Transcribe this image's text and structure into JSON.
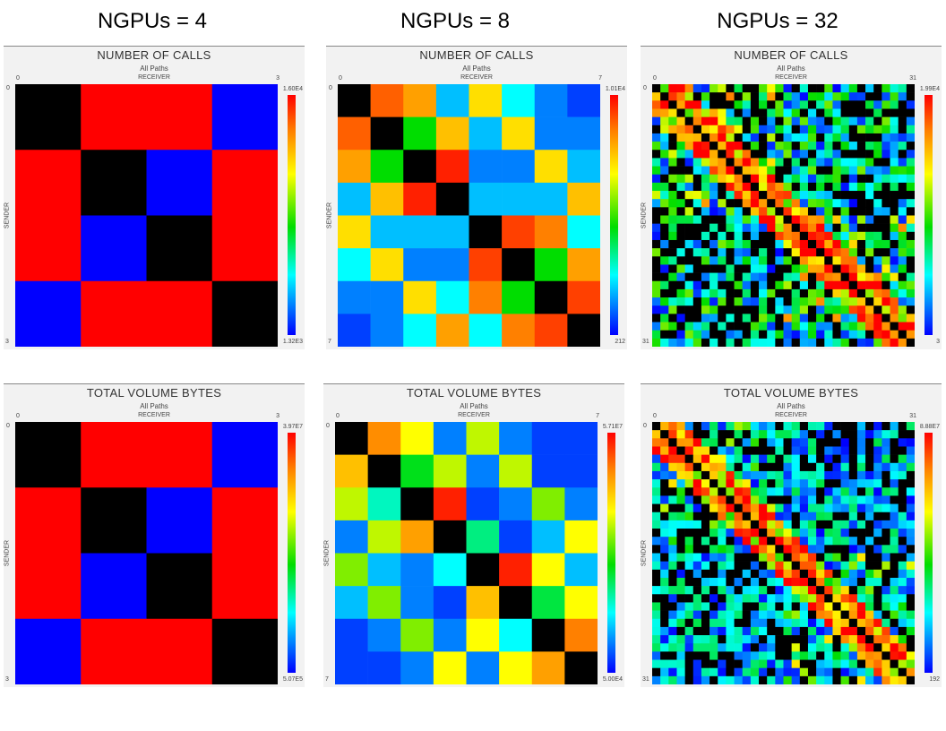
{
  "column_titles": [
    "NGPUs = 4",
    "NGPUs = 8",
    "NGPUs = 32"
  ],
  "subtitle": "All Paths",
  "x_axis_label": "RECEIVER",
  "y_axis_label": "SENDER",
  "colorscale": [
    "#0000ff",
    "#00ffff",
    "#00dd00",
    "#ffff00",
    "#ff8000",
    "#ff0000"
  ],
  "diagonal_color": "#000000",
  "chart_data": [
    {
      "type": "heatmap",
      "title": "NUMBER OF CALLS",
      "n": 4,
      "tick_min": "0",
      "tick_max": "3",
      "cbar_max": "1.60E4",
      "cbar_min": "1.32E3",
      "values": [
        [
          -1,
          1,
          1,
          0
        ],
        [
          1,
          -1,
          0,
          1
        ],
        [
          1,
          0,
          -1,
          1
        ],
        [
          0,
          1,
          1,
          -1
        ]
      ]
    },
    {
      "type": "heatmap",
      "title": "NUMBER OF CALLS",
      "n": 8,
      "tick_min": "0",
      "tick_max": "7",
      "cbar_max": "1.01E4",
      "cbar_min": "212",
      "values": [
        [
          -1,
          0.85,
          0.75,
          0.15,
          0.65,
          0.2,
          0.1,
          0.05
        ],
        [
          0.85,
          -1,
          0.4,
          0.7,
          0.15,
          0.65,
          0.1,
          0.1
        ],
        [
          0.75,
          0.4,
          -1,
          0.95,
          0.1,
          0.1,
          0.65,
          0.15
        ],
        [
          0.15,
          0.7,
          0.95,
          -1,
          0.15,
          0.15,
          0.15,
          0.7
        ],
        [
          0.65,
          0.15,
          0.15,
          0.15,
          -1,
          0.9,
          0.8,
          0.2
        ],
        [
          0.2,
          0.65,
          0.1,
          0.1,
          0.9,
          -1,
          0.4,
          0.75
        ],
        [
          0.1,
          0.1,
          0.65,
          0.2,
          0.8,
          0.4,
          -1,
          0.9
        ],
        [
          0.05,
          0.1,
          0.2,
          0.75,
          0.2,
          0.8,
          0.9,
          -1
        ]
      ]
    },
    {
      "type": "heatmap",
      "title": "NUMBER OF CALLS",
      "n": 32,
      "tick_min": "0",
      "tick_max": "31",
      "cbar_max": "1.99E4",
      "cbar_min": "3",
      "seed": 7,
      "zero_fraction": 0.35
    },
    {
      "type": "heatmap",
      "title": "TOTAL VOLUME BYTES",
      "n": 4,
      "tick_min": "0",
      "tick_max": "3",
      "cbar_max": "3.97E7",
      "cbar_min": "5.07E5",
      "values": [
        [
          -1,
          1,
          1,
          0
        ],
        [
          1,
          -1,
          0,
          1
        ],
        [
          1,
          0,
          -1,
          1
        ],
        [
          0,
          1,
          1,
          -1
        ]
      ]
    },
    {
      "type": "heatmap",
      "title": "TOTAL VOLUME BYTES",
      "n": 8,
      "tick_min": "0",
      "tick_max": "7",
      "cbar_max": "5.71E7",
      "cbar_min": "5.00E4",
      "values": [
        [
          -1,
          0.78,
          0.6,
          0.1,
          0.55,
          0.1,
          0.05,
          0.05
        ],
        [
          0.7,
          -1,
          0.38,
          0.55,
          0.1,
          0.55,
          0.05,
          0.05
        ],
        [
          0.55,
          0.25,
          -1,
          0.95,
          0.05,
          0.1,
          0.5,
          0.1
        ],
        [
          0.1,
          0.55,
          0.75,
          -1,
          0.3,
          0.05,
          0.15,
          0.6
        ],
        [
          0.5,
          0.15,
          0.1,
          0.2,
          -1,
          0.95,
          0.6,
          0.15
        ],
        [
          0.15,
          0.5,
          0.1,
          0.05,
          0.7,
          -1,
          0.35,
          0.6
        ],
        [
          0.05,
          0.1,
          0.5,
          0.1,
          0.6,
          0.2,
          -1,
          0.8
        ],
        [
          0.05,
          0.05,
          0.1,
          0.6,
          0.1,
          0.6,
          0.75,
          -1
        ]
      ]
    },
    {
      "type": "heatmap",
      "title": "TOTAL VOLUME BYTES",
      "n": 32,
      "tick_min": "0",
      "tick_max": "31",
      "cbar_max": "8.88E7",
      "cbar_min": "192",
      "seed": 13,
      "zero_fraction": 0.3,
      "low_bias": true
    }
  ]
}
